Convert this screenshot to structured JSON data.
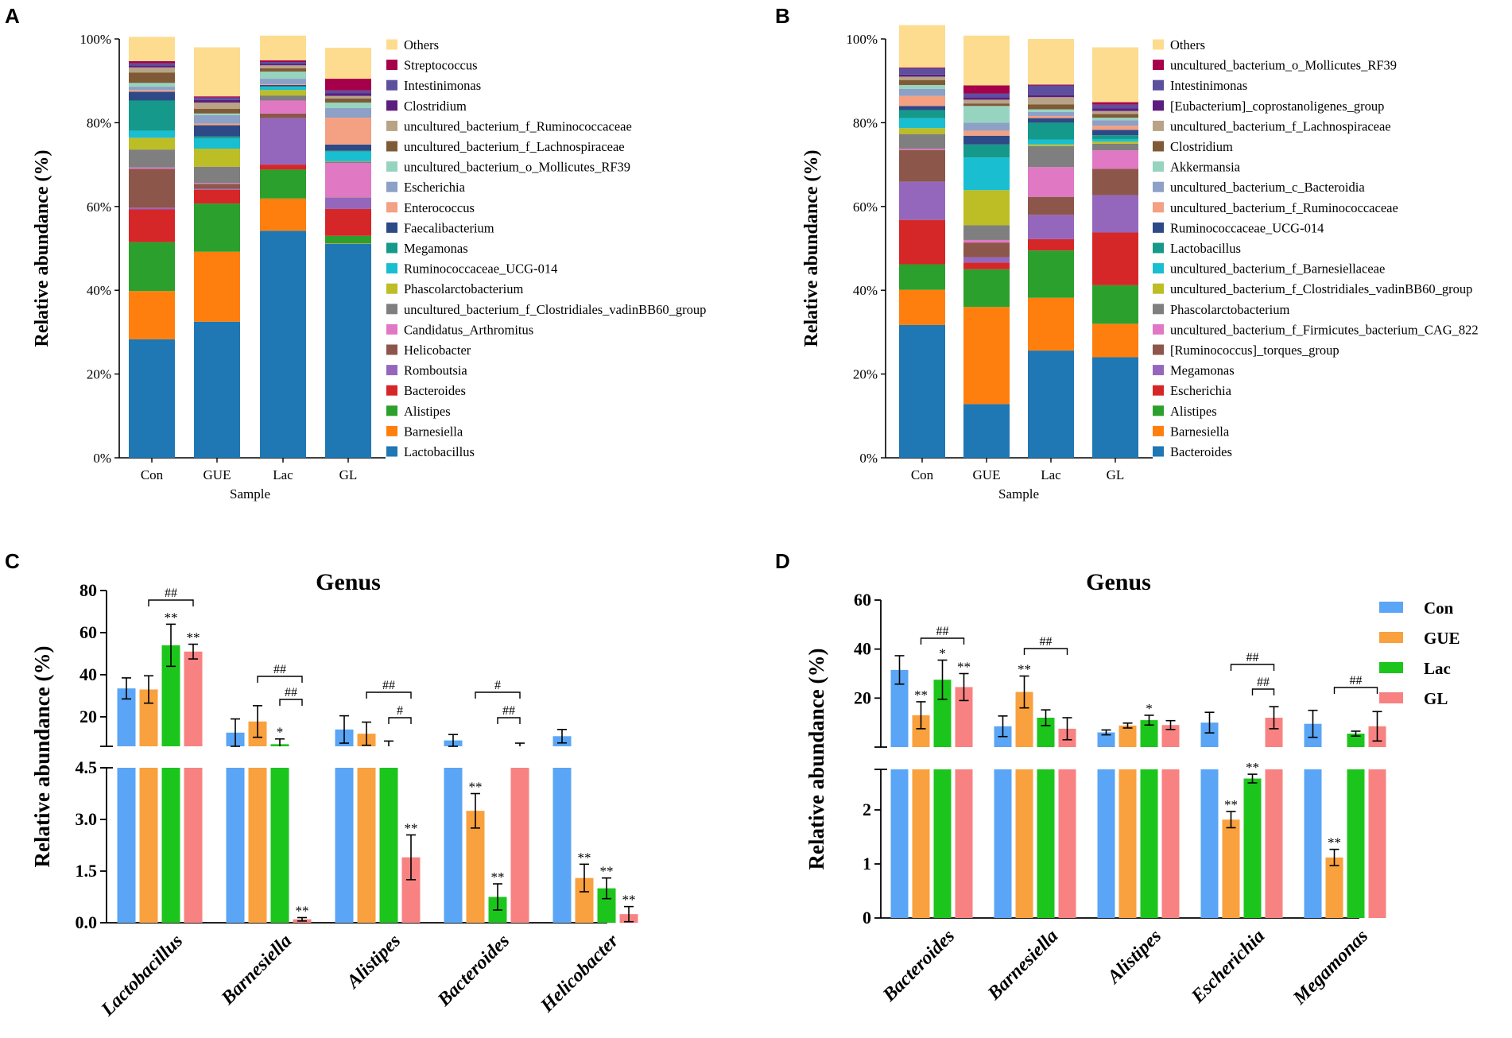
{
  "panels": [
    {
      "letter": "A",
      "type": "stacked_bar",
      "ylabel": "Relative abundance (%)",
      "xlabel": "Sample",
      "yticks": [
        "0%",
        "20%",
        "40%",
        "60%",
        "80%",
        "100%"
      ],
      "categories": [
        "Con",
        "GUE",
        "Lac",
        "GL"
      ],
      "stack_order": [
        "Lactobacillus",
        "Barnesiella",
        "Alistipes",
        "Bacteroides",
        "Romboutsia",
        "Helicobacter",
        "Candidatus_Arthromitus",
        "uncultured_bacterium_f_Clostridiales_vadinBB60_group",
        "Phascolarctobacterium",
        "Ruminococcaceae_UCG-014",
        "Megamonas",
        "Faecalibacterium",
        "Enterococcus",
        "Escherichia",
        "uncultured_bacterium_o_Mollicutes_RF39",
        "uncultured_bacterium_f_Lachnospiraceae",
        "uncultured_bacterium_f_Ruminococcaceae",
        "Clostridium",
        "Intestinimonas",
        "Streptococcus",
        "Others"
      ],
      "legend": [
        {
          "label": "Others",
          "color": "#FDDC8F"
        },
        {
          "label": "Streptococcus",
          "color": "#A50049"
        },
        {
          "label": "Intestinimonas",
          "color": "#5B4F9E"
        },
        {
          "label": "Clostridium",
          "color": "#5C1E7E"
        },
        {
          "label": "uncultured_bacterium_f_Ruminococcaceae",
          "color": "#B8A386"
        },
        {
          "label": "uncultured_bacterium_f_Lachnospiraceae",
          "color": "#7F5A36"
        },
        {
          "label": "uncultured_bacterium_o_Mollicutes_RF39",
          "color": "#96D4C0"
        },
        {
          "label": "Escherichia",
          "color": "#8DA0C6"
        },
        {
          "label": "Enterococcus",
          "color": "#F3A083"
        },
        {
          "label": "Faecalibacterium",
          "color": "#2E4A86"
        },
        {
          "label": "Megamonas",
          "color": "#14998A"
        },
        {
          "label": "Ruminococcaceae_UCG-014",
          "color": "#19BED1"
        },
        {
          "label": "Phascolarctobacterium",
          "color": "#BDBD25"
        },
        {
          "label": "uncultured_bacterium_f_Clostridiales_vadinBB60_group",
          "color": "#7F7F7F"
        },
        {
          "label": "Candidatus_Arthromitus",
          "color": "#E078C4"
        },
        {
          "label": "Helicobacter",
          "color": "#8C564B"
        },
        {
          "label": "Romboutsia",
          "color": "#9467BD"
        },
        {
          "label": "Bacteroides",
          "color": "#D62728"
        },
        {
          "label": "Alistipes",
          "color": "#2CA02C"
        },
        {
          "label": "Barnesiella",
          "color": "#FF7F0E"
        },
        {
          "label": "Lactobacillus",
          "color": "#1F77B4"
        }
      ],
      "values": {
        "Con": [
          28.3,
          11.5,
          11.7,
          7.8,
          0.4,
          9.3,
          0.3,
          4.3,
          2.8,
          1.7,
          7.2,
          2.1,
          0.4,
          0.8,
          0.9,
          2.5,
          1.2,
          0.5,
          0.5,
          0.5,
          5.8
        ],
        "GUE": [
          32.5,
          16.7,
          11.5,
          3.3,
          0.2,
          1.2,
          0.2,
          3.9,
          4.3,
          2.5,
          0.4,
          2.7,
          0.4,
          2.0,
          0.4,
          1.1,
          1.5,
          0.6,
          0.6,
          0.3,
          11.7
        ],
        "Lac": [
          54.2,
          7.7,
          6.9,
          1.2,
          11.1,
          1.1,
          3.1,
          1.2,
          1.3,
          0.8,
          0.1,
          0.3,
          0.2,
          1.3,
          1.7,
          0.8,
          0.7,
          0.4,
          0.4,
          0.4,
          5.9
        ],
        "GL": [
          51.1,
          0.1,
          1.8,
          6.4,
          2.7,
          0.1,
          8.2,
          0.3,
          0.1,
          2.3,
          0.2,
          1.5,
          6.4,
          2.3,
          1.3,
          1.0,
          0.6,
          0.6,
          0.7,
          2.8,
          7.4
        ]
      }
    },
    {
      "letter": "B",
      "type": "stacked_bar",
      "ylabel": "Relative abundance (%)",
      "xlabel": "Sample",
      "yticks": [
        "0%",
        "20%",
        "40%",
        "60%",
        "80%",
        "100%"
      ],
      "categories": [
        "Con",
        "GUE",
        "Lac",
        "GL"
      ],
      "stack_order": [
        "Bacteroides",
        "Barnesiella",
        "Alistipes",
        "Escherichia",
        "Megamonas",
        "[Ruminococcus]_torques_group",
        "uncultured_bacterium_f_Firmicutes_bacterium_CAG_822",
        "Phascolarctobacterium",
        "uncultured_bacterium_f_Clostridiales_vadinBB60_group",
        "uncultured_bacterium_f_Barnesiellaceae",
        "Lactobacillus",
        "Ruminococcaceae_UCG-014",
        "uncultured_bacterium_f_Ruminococcaceae",
        "uncultured_bacterium_c_Bacteroidia",
        "Akkermansia",
        "Clostridium",
        "uncultured_bacterium_f_Lachnospiraceae",
        "[Eubacterium]_coprostanoligenes_group",
        "Intestinimonas",
        "uncultured_bacterium_o_Mollicutes_RF39",
        "Others"
      ],
      "legend": [
        {
          "label": "Others",
          "color": "#FDDC8F"
        },
        {
          "label": "uncultured_bacterium_o_Mollicutes_RF39",
          "color": "#A50049"
        },
        {
          "label": "Intestinimonas",
          "color": "#5B4F9E"
        },
        {
          "label": "[Eubacterium]_coprostanoligenes_group",
          "color": "#5C1E7E"
        },
        {
          "label": "uncultured_bacterium_f_Lachnospiraceae",
          "color": "#B8A386"
        },
        {
          "label": "Clostridium",
          "color": "#7F5A36"
        },
        {
          "label": "Akkermansia",
          "color": "#96D4C0"
        },
        {
          "label": "uncultured_bacterium_c_Bacteroidia",
          "color": "#8DA0C6"
        },
        {
          "label": "uncultured_bacterium_f_Ruminococcaceae",
          "color": "#F3A083"
        },
        {
          "label": "Ruminococcaceae_UCG-014",
          "color": "#2E4A86"
        },
        {
          "label": "Lactobacillus",
          "color": "#14998A"
        },
        {
          "label": "uncultured_bacterium_f_Barnesiellaceae",
          "color": "#19BED1"
        },
        {
          "label": "uncultured_bacterium_f_Clostridiales_vadinBB60_group",
          "color": "#BDBD25"
        },
        {
          "label": "Phascolarctobacterium",
          "color": "#7F7F7F"
        },
        {
          "label": "uncultured_bacterium_f_Firmicutes_bacterium_CAG_822",
          "color": "#E078C4"
        },
        {
          "label": "[Ruminococcus]_torques_group",
          "color": "#8C564B"
        },
        {
          "label": "Megamonas",
          "color": "#9467BD"
        },
        {
          "label": "Escherichia",
          "color": "#D62728"
        },
        {
          "label": "Alistipes",
          "color": "#2CA02C"
        },
        {
          "label": "Barnesiella",
          "color": "#FF7F0E"
        },
        {
          "label": "Bacteroides",
          "color": "#1F77B4"
        }
      ],
      "values": {
        "Con": [
          31.7,
          8.4,
          6.1,
          10.6,
          9.1,
          7.6,
          0.3,
          3.5,
          1.4,
          2.4,
          1.9,
          1.0,
          2.4,
          1.7,
          0.9,
          1.2,
          0.8,
          0.5,
          1.5,
          0.2,
          10.1
        ],
        "GUE": [
          12.8,
          23.2,
          9.0,
          1.6,
          1.3,
          3.5,
          0.6,
          3.5,
          8.4,
          7.8,
          3.1,
          2.1,
          1.2,
          1.9,
          4.0,
          0.6,
          0.9,
          0.6,
          0.9,
          1.9,
          11.9
        ],
        "Lac": [
          25.6,
          12.6,
          11.3,
          2.7,
          5.8,
          4.3,
          7.1,
          5.0,
          0.4,
          1.2,
          4.0,
          1.1,
          0.5,
          1.0,
          0.6,
          1.2,
          1.7,
          0.5,
          2.3,
          0.2,
          10.9
        ],
        "GL": [
          24.0,
          8.0,
          9.2,
          12.6,
          8.9,
          6.3,
          4.4,
          1.6,
          0.5,
          0.6,
          0.9,
          1.3,
          1.0,
          1.3,
          0.6,
          0.9,
          0.7,
          0.6,
          0.9,
          0.6,
          13.1
        ]
      }
    },
    {
      "letter": "C",
      "type": "grouped_bar_broken_axis",
      "title": "Genus",
      "ylabel": "Relative abundance (%)",
      "upper_ticks": [
        "20",
        "40",
        "60",
        "80"
      ],
      "lower_ticks": [
        "0.0",
        "1.5",
        "3.0",
        "4.5"
      ],
      "upper_range": [
        6,
        80
      ],
      "lower_range": [
        0,
        4.5
      ],
      "groups": [
        "Con",
        "GUE",
        "Lac",
        "GL"
      ],
      "colors": [
        "#5AA5F5",
        "#F9A13E",
        "#1CC51C",
        "#F88282"
      ],
      "categories": [
        "Lactobacillus",
        "Barnesiella",
        "Alistipes",
        "Bacteroides",
        "Helicobacter"
      ],
      "series": [
        {
          "name": "Con",
          "values": [
            33.5,
            12.5,
            14.0,
            8.8,
            10.8
          ],
          "errors": [
            5.0,
            6.5,
            6.5,
            2.8,
            3.2
          ],
          "sig": [
            "",
            "",
            "",
            "",
            ""
          ]
        },
        {
          "name": "GUE",
          "values": [
            33.0,
            17.8,
            12.0,
            3.25,
            1.3
          ],
          "errors": [
            6.5,
            7.5,
            5.5,
            0.5,
            0.4
          ],
          "sig": [
            "",
            "",
            "",
            "**",
            "**"
          ]
        },
        {
          "name": "Lac",
          "values": [
            54.0,
            7.0,
            6.0,
            0.75,
            1.0
          ],
          "errors": [
            10.0,
            2.5,
            2.5,
            0.38,
            0.3
          ],
          "sig": [
            "**",
            "*",
            "",
            "**",
            "**"
          ]
        },
        {
          "name": "GL",
          "values": [
            51.0,
            0.1,
            1.9,
            6.0,
            0.25
          ],
          "errors": [
            3.5,
            0.05,
            0.65,
            1.5,
            0.22
          ],
          "sig": [
            "**",
            "**",
            "**",
            "",
            "**"
          ]
        }
      ],
      "comparisons": [
        {
          "category": 0,
          "from": "GUE",
          "to": "GL",
          "label": "##"
        },
        {
          "category": 1,
          "from": "GUE",
          "to": "GL",
          "label": "##"
        },
        {
          "category": 1,
          "from": "Lac",
          "to": "GL",
          "label": "##"
        },
        {
          "category": 2,
          "from": "GUE",
          "to": "GL",
          "label": "##"
        },
        {
          "category": 2,
          "from": "Lac",
          "to": "GL",
          "label": "#"
        },
        {
          "category": 3,
          "from": "GUE",
          "to": "GL",
          "label": "#"
        },
        {
          "category": 3,
          "from": "Lac",
          "to": "GL",
          "label": "##"
        }
      ]
    },
    {
      "letter": "D",
      "type": "grouped_bar_broken_axis",
      "title": "Genus",
      "ylabel": "Relative abundance (%)",
      "upper_ticks": [
        "20",
        "40",
        "60"
      ],
      "lower_ticks": [
        "0",
        "1",
        "2"
      ],
      "upper_range": [
        0,
        60
      ],
      "lower_range": [
        0,
        2.75
      ],
      "groups": [
        "Con",
        "GUE",
        "Lac",
        "GL"
      ],
      "colors": [
        "#5AA5F5",
        "#F9A13E",
        "#1CC51C",
        "#F88282"
      ],
      "categories": [
        "Bacteroides",
        "Barnesiella",
        "Alistipes",
        "Escherichia",
        "Megamonas"
      ],
      "series": [
        {
          "name": "Con",
          "values": [
            31.5,
            8.5,
            6.0,
            10.0,
            9.5
          ],
          "errors": [
            5.8,
            4.2,
            1.0,
            4.2,
            5.5
          ],
          "sig": [
            "",
            "",
            "",
            "",
            ""
          ]
        },
        {
          "name": "GUE",
          "values": [
            13.0,
            22.5,
            8.8,
            1.82,
            1.12
          ],
          "errors": [
            5.5,
            6.5,
            1.0,
            0.15,
            0.15
          ],
          "sig": [
            "**",
            "**",
            "",
            "**",
            "**"
          ]
        },
        {
          "name": "Lac",
          "values": [
            27.5,
            12.0,
            11.0,
            2.58,
            5.5
          ],
          "errors": [
            8.0,
            3.2,
            2.0,
            0.08,
            1.0
          ],
          "sig": [
            "*",
            "",
            "*",
            "**",
            ""
          ]
        },
        {
          "name": "GL",
          "values": [
            24.5,
            7.5,
            9.0,
            12.0,
            8.5
          ],
          "errors": [
            5.5,
            4.5,
            1.8,
            4.5,
            6.0
          ],
          "sig": [
            "**",
            "",
            "",
            "",
            ""
          ]
        }
      ],
      "comparisons": [
        {
          "category": 0,
          "from": "GUE",
          "to": "GL",
          "label": "##"
        },
        {
          "category": 1,
          "from": "GUE",
          "to": "GL",
          "label": "##"
        },
        {
          "category": 3,
          "from": "GUE",
          "to": "GL",
          "label": "##"
        },
        {
          "category": 3,
          "from": "Lac",
          "to": "GL",
          "label": "##"
        },
        {
          "category": 4,
          "from": "GUE",
          "to": "GL",
          "label": "##"
        }
      ],
      "legend": [
        {
          "label": "Con",
          "color": "#5AA5F5"
        },
        {
          "label": "GUE",
          "color": "#F9A13E"
        },
        {
          "label": "Lac",
          "color": "#1CC51C"
        },
        {
          "label": "GL",
          "color": "#F88282"
        }
      ]
    }
  ]
}
